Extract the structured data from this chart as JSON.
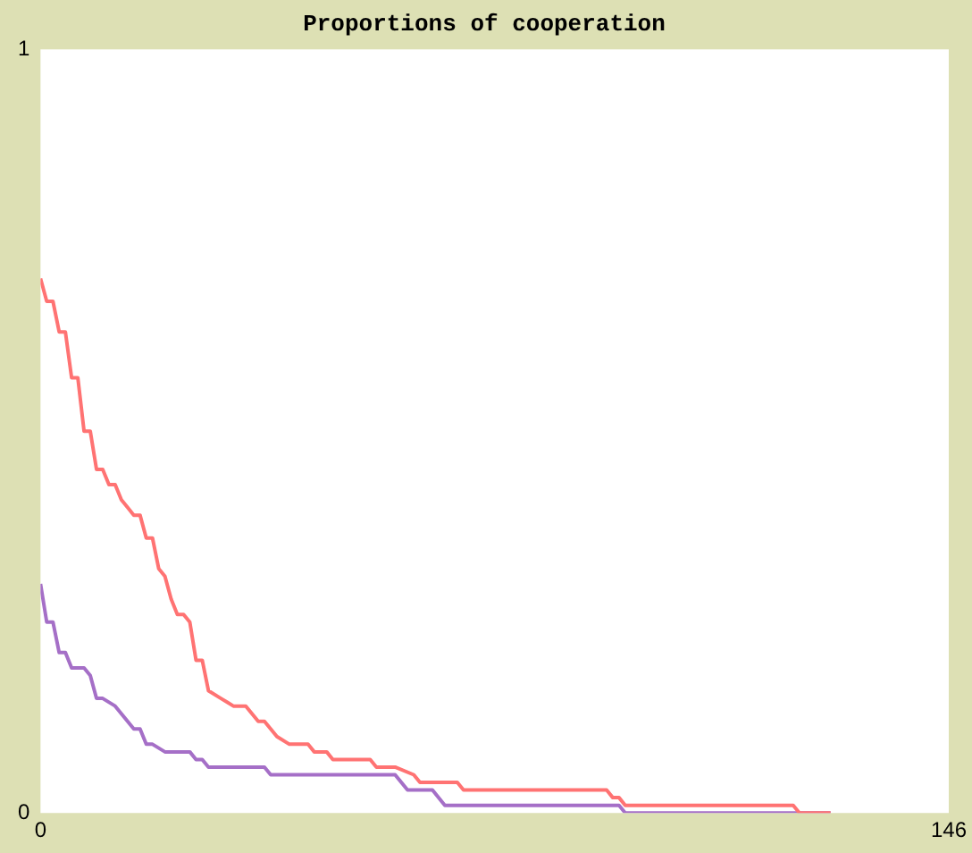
{
  "chart_data": {
    "type": "line",
    "title": "Proportions of cooperation",
    "xlim": [
      0,
      146
    ],
    "xticks": [
      0,
      146
    ],
    "ylim": [
      0,
      1
    ],
    "yticks": [
      0,
      1
    ],
    "grid": false,
    "legend": false,
    "marker": "none",
    "series": [
      {
        "color": "#ff7373",
        "x": [
          0,
          1,
          2,
          3,
          4,
          5,
          6,
          7,
          8,
          9,
          10,
          11,
          12,
          13,
          14,
          15,
          16,
          17,
          18,
          19,
          20,
          21,
          22,
          23,
          24,
          25,
          26,
          27,
          29,
          31,
          33,
          34,
          35,
          36,
          37,
          38,
          40,
          43,
          44,
          46,
          47,
          53,
          54,
          57,
          60,
          61,
          67,
          68,
          91,
          92,
          93,
          94,
          121,
          122,
          127
        ],
        "values": [
          0.7,
          0.67,
          0.67,
          0.63,
          0.63,
          0.57,
          0.57,
          0.5,
          0.5,
          0.45,
          0.45,
          0.43,
          0.43,
          0.41,
          0.4,
          0.39,
          0.39,
          0.36,
          0.36,
          0.32,
          0.31,
          0.28,
          0.26,
          0.26,
          0.25,
          0.2,
          0.2,
          0.16,
          0.15,
          0.14,
          0.14,
          0.13,
          0.12,
          0.12,
          0.11,
          0.1,
          0.09,
          0.09,
          0.08,
          0.08,
          0.07,
          0.07,
          0.06,
          0.06,
          0.05,
          0.04,
          0.04,
          0.03,
          0.03,
          0.02,
          0.02,
          0.01,
          0.01,
          0,
          0
        ]
      },
      {
        "color": "#a56fc7",
        "x": [
          0,
          1,
          2,
          3,
          4,
          5,
          7,
          8,
          9,
          10,
          12,
          13,
          15,
          16,
          17,
          18,
          20,
          24,
          25,
          26,
          27,
          36,
          37,
          57,
          59,
          63,
          65,
          66,
          93,
          94,
          127
        ],
        "values": [
          0.3,
          0.25,
          0.25,
          0.21,
          0.21,
          0.19,
          0.19,
          0.18,
          0.15,
          0.15,
          0.14,
          0.13,
          0.11,
          0.11,
          0.09,
          0.09,
          0.08,
          0.08,
          0.07,
          0.07,
          0.06,
          0.06,
          0.05,
          0.05,
          0.03,
          0.03,
          0.01,
          0.01,
          0.01,
          0,
          0
        ]
      }
    ]
  }
}
